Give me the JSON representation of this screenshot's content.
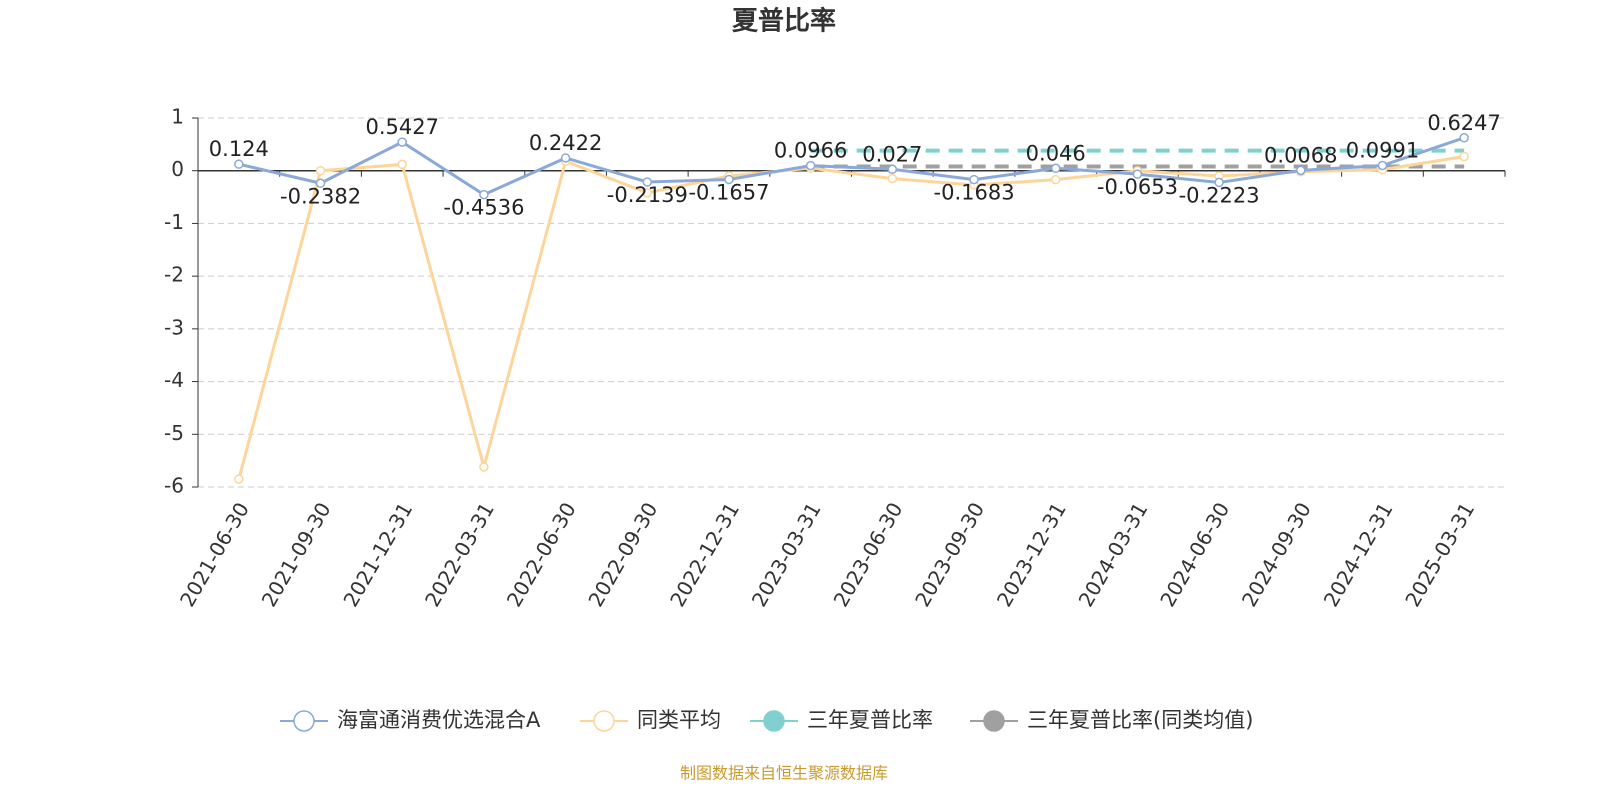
{
  "chart_data": {
    "type": "line",
    "title": "夏普比率",
    "footnote": "制图数据来自恒生聚源数据库",
    "categories": [
      "2021-06-30",
      "2021-09-30",
      "2021-12-31",
      "2022-03-31",
      "2022-06-30",
      "2022-09-30",
      "2022-12-31",
      "2023-03-31",
      "2023-06-30",
      "2023-09-30",
      "2023-12-31",
      "2024-03-31",
      "2024-06-30",
      "2024-09-30",
      "2024-12-31",
      "2025-03-31"
    ],
    "series": [
      {
        "name": "海富通消费优选混合A",
        "color": "#8aa9d8",
        "values": [
          0.124,
          -0.2382,
          0.5427,
          -0.4536,
          0.2422,
          -0.2139,
          -0.1657,
          0.0966,
          0.027,
          -0.1683,
          0.046,
          -0.0653,
          -0.2223,
          0.0068,
          0.0991,
          0.6247
        ],
        "show_labels": true
      },
      {
        "name": "同类平均",
        "color": "#fdd59a",
        "values": [
          -5.85,
          0.0,
          0.12,
          -5.62,
          0.18,
          -0.42,
          -0.1,
          0.05,
          -0.15,
          -0.27,
          -0.17,
          0.0,
          -0.1,
          -0.02,
          0.02,
          0.27
        ]
      },
      {
        "name": "三年夏普比率",
        "color": "#80d0d0",
        "dashed": true,
        "values": [
          null,
          null,
          null,
          null,
          null,
          null,
          null,
          0.38,
          0.38,
          0.38,
          0.38,
          0.38,
          0.38,
          0.38,
          0.38,
          0.38
        ]
      },
      {
        "name": "三年夏普比率(同类均值)",
        "color": "#a0a0a0",
        "dashed": true,
        "values": [
          null,
          null,
          null,
          null,
          null,
          null,
          null,
          0.08,
          0.08,
          0.08,
          0.08,
          0.08,
          0.08,
          0.08,
          0.08,
          0.08
        ]
      }
    ],
    "ylim": [
      -6,
      1
    ],
    "yticks": [
      1,
      0,
      -1,
      -2,
      -3,
      -4,
      -5,
      -6
    ],
    "grid": true,
    "legend": "bottom"
  }
}
